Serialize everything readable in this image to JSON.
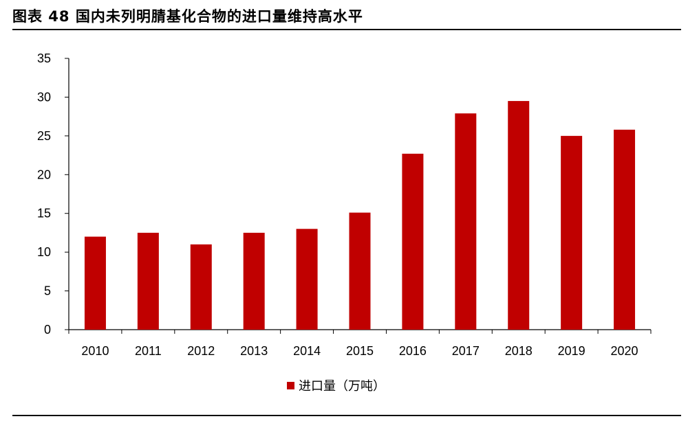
{
  "header": {
    "title": "图表 48 国内未列明腈基化合物的进口量维持高水平"
  },
  "colors": {
    "bar": "#C00000",
    "axis": "#000000"
  },
  "chart_data": {
    "type": "bar",
    "categories": [
      "2010",
      "2011",
      "2012",
      "2013",
      "2014",
      "2015",
      "2016",
      "2017",
      "2018",
      "2019",
      "2020"
    ],
    "series": [
      {
        "name": "进口量（万吨）",
        "values": [
          12.0,
          12.5,
          11.0,
          12.5,
          13.0,
          15.1,
          22.7,
          27.9,
          29.5,
          25.0,
          25.8
        ]
      }
    ],
    "title": "",
    "xlabel": "",
    "ylabel": "",
    "ylim": [
      0,
      35
    ],
    "yticks": [
      0,
      5,
      10,
      15,
      20,
      25,
      30,
      35
    ],
    "grid": false,
    "legend_position": "bottom"
  }
}
